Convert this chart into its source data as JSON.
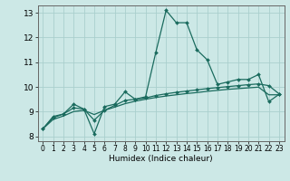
{
  "xlabel": "Humidex (Indice chaleur)",
  "ylabel": "",
  "xlim": [
    -0.5,
    23.5
  ],
  "ylim": [
    7.8,
    13.3
  ],
  "xticks": [
    0,
    1,
    2,
    3,
    4,
    5,
    6,
    7,
    8,
    9,
    10,
    11,
    12,
    13,
    14,
    15,
    16,
    17,
    18,
    19,
    20,
    21,
    22,
    23
  ],
  "yticks": [
    8,
    9,
    10,
    11,
    12,
    13
  ],
  "bg_color": "#cce8e6",
  "grid_color": "#aacfcd",
  "line_color": "#1a6b5e",
  "line1_y": [
    8.3,
    8.8,
    8.9,
    9.3,
    9.1,
    8.1,
    9.2,
    9.3,
    9.8,
    9.5,
    9.6,
    11.4,
    13.1,
    12.6,
    12.6,
    11.5,
    11.1,
    10.1,
    10.2,
    10.3,
    10.3,
    10.5,
    9.4,
    9.7
  ],
  "line2_y": [
    8.3,
    8.75,
    8.9,
    9.15,
    9.1,
    8.65,
    9.05,
    9.25,
    9.45,
    9.5,
    9.55,
    9.65,
    9.72,
    9.78,
    9.83,
    9.88,
    9.93,
    9.97,
    10.01,
    10.05,
    10.09,
    10.12,
    10.05,
    9.72
  ],
  "line3_y": [
    8.3,
    8.68,
    8.82,
    9.0,
    9.05,
    8.88,
    9.05,
    9.18,
    9.32,
    9.42,
    9.5,
    9.57,
    9.63,
    9.68,
    9.73,
    9.77,
    9.82,
    9.86,
    9.9,
    9.93,
    9.96,
    9.99,
    9.68,
    9.68
  ]
}
